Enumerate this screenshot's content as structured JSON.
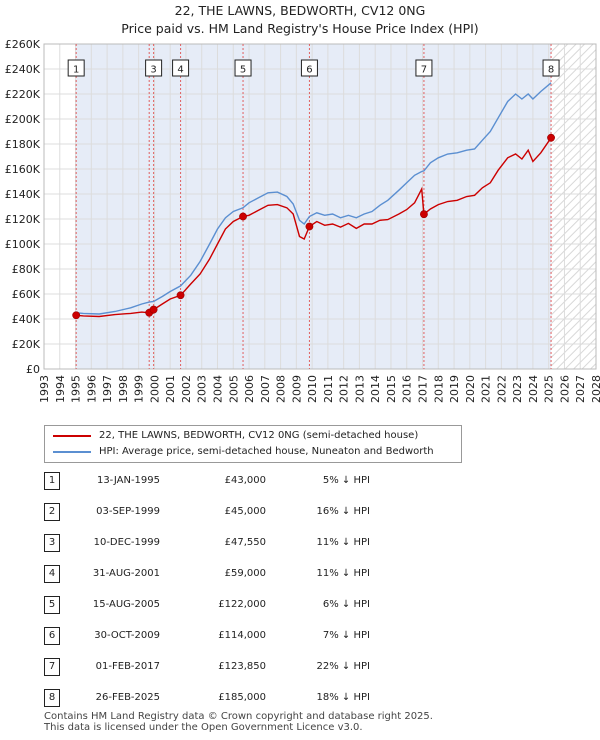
{
  "title_line1": "22, THE LAWNS, BEDWORTH, CV12 0NG",
  "title_line2": "Price paid vs. HM Land Registry's House Price Index (HPI)",
  "colors": {
    "price": "#cc0000",
    "hpi": "#5b8fd1",
    "band": "#e6ecf7",
    "grid": "#dcdcdc"
  },
  "legend": {
    "price_label": "22, THE LAWNS, BEDWORTH, CV12 0NG (semi-detached house)",
    "hpi_label": "HPI: Average price, semi-detached house, Nuneaton and Bedworth"
  },
  "chart_data": {
    "type": "line",
    "xlim": [
      1993,
      2028
    ],
    "ylim": [
      0,
      260000
    ],
    "y_ticks": [
      "£0",
      "£20K",
      "£40K",
      "£60K",
      "£80K",
      "£100K",
      "£120K",
      "£140K",
      "£160K",
      "£180K",
      "£200K",
      "£220K",
      "£240K",
      "£260K"
    ],
    "x_ticks": [
      "1993",
      "1994",
      "1995",
      "1996",
      "1997",
      "1998",
      "1999",
      "2000",
      "2001",
      "2002",
      "2003",
      "2004",
      "2005",
      "2006",
      "2007",
      "2008",
      "2009",
      "2010",
      "2011",
      "2012",
      "2013",
      "2014",
      "2015",
      "2016",
      "2017",
      "2018",
      "2019",
      "2020",
      "2021",
      "2022",
      "2023",
      "2024",
      "2025",
      "2026",
      "2027",
      "2028"
    ],
    "shaded_range": [
      1995.04,
      2025.15
    ],
    "grid": true,
    "series": [
      {
        "name": "22, THE LAWNS, BEDWORTH, CV12 0NG (semi-detached house)",
        "points": [
          [
            1995.04,
            43000
          ],
          [
            1995.5,
            42500
          ],
          [
            1996.5,
            42000
          ],
          [
            1997.5,
            43500
          ],
          [
            1998.5,
            44500
          ],
          [
            1999.2,
            45500
          ],
          [
            1999.67,
            45000
          ],
          [
            1999.95,
            47550
          ],
          [
            2000.5,
            52000
          ],
          [
            2001.0,
            56000
          ],
          [
            2001.66,
            59000
          ],
          [
            2002.3,
            68000
          ],
          [
            2002.9,
            76000
          ],
          [
            2003.5,
            88000
          ],
          [
            2004.0,
            100000
          ],
          [
            2004.5,
            112000
          ],
          [
            2005.0,
            118000
          ],
          [
            2005.62,
            122000
          ],
          [
            2006.0,
            123000
          ],
          [
            2006.6,
            127000
          ],
          [
            2007.2,
            131000
          ],
          [
            2007.8,
            131500
          ],
          [
            2008.4,
            129000
          ],
          [
            2008.8,
            124000
          ],
          [
            2009.2,
            106000
          ],
          [
            2009.5,
            104000
          ],
          [
            2009.83,
            114000
          ],
          [
            2010.3,
            118000
          ],
          [
            2010.8,
            115000
          ],
          [
            2011.3,
            116000
          ],
          [
            2011.8,
            113500
          ],
          [
            2012.3,
            116500
          ],
          [
            2012.8,
            112500
          ],
          [
            2013.3,
            116000
          ],
          [
            2013.8,
            116000
          ],
          [
            2014.3,
            119000
          ],
          [
            2014.8,
            119500
          ],
          [
            2015.5,
            124000
          ],
          [
            2016.0,
            127500
          ],
          [
            2016.5,
            133000
          ],
          [
            2016.95,
            144000
          ],
          [
            2017.09,
            123850
          ],
          [
            2017.5,
            128000
          ],
          [
            2018.0,
            131500
          ],
          [
            2018.6,
            134000
          ],
          [
            2019.2,
            135000
          ],
          [
            2019.8,
            138000
          ],
          [
            2020.3,
            139000
          ],
          [
            2020.8,
            145000
          ],
          [
            2021.3,
            149000
          ],
          [
            2021.8,
            159000
          ],
          [
            2022.4,
            169000
          ],
          [
            2022.9,
            172000
          ],
          [
            2023.3,
            168000
          ],
          [
            2023.7,
            175000
          ],
          [
            2024.0,
            166000
          ],
          [
            2024.5,
            173000
          ],
          [
            2025.15,
            185000
          ]
        ]
      },
      {
        "name": "HPI: Average price, semi-detached house, Nuneaton and Bedworth",
        "points": [
          [
            1995.04,
            45000
          ],
          [
            1995.5,
            44500
          ],
          [
            1996.5,
            44000
          ],
          [
            1997.5,
            46000
          ],
          [
            1998.5,
            49000
          ],
          [
            1999.2,
            52000
          ],
          [
            1999.67,
            53500
          ],
          [
            1999.95,
            54000
          ],
          [
            2000.5,
            58000
          ],
          [
            2001.0,
            62000
          ],
          [
            2001.66,
            66500
          ],
          [
            2002.3,
            75000
          ],
          [
            2002.9,
            86000
          ],
          [
            2003.5,
            100000
          ],
          [
            2004.0,
            112000
          ],
          [
            2004.5,
            121000
          ],
          [
            2005.0,
            126000
          ],
          [
            2005.62,
            129000
          ],
          [
            2006.0,
            133000
          ],
          [
            2006.6,
            137000
          ],
          [
            2007.2,
            141000
          ],
          [
            2007.8,
            141500
          ],
          [
            2008.4,
            138000
          ],
          [
            2008.8,
            132000
          ],
          [
            2009.2,
            119000
          ],
          [
            2009.5,
            116000
          ],
          [
            2009.83,
            122000
          ],
          [
            2010.3,
            125000
          ],
          [
            2010.8,
            123000
          ],
          [
            2011.3,
            124000
          ],
          [
            2011.8,
            121000
          ],
          [
            2012.3,
            123000
          ],
          [
            2012.8,
            121000
          ],
          [
            2013.3,
            124000
          ],
          [
            2013.8,
            126000
          ],
          [
            2014.3,
            131000
          ],
          [
            2014.8,
            135000
          ],
          [
            2015.5,
            143000
          ],
          [
            2016.0,
            149000
          ],
          [
            2016.5,
            155000
          ],
          [
            2016.95,
            158000
          ],
          [
            2017.09,
            158500
          ],
          [
            2017.5,
            165000
          ],
          [
            2018.0,
            169000
          ],
          [
            2018.6,
            172000
          ],
          [
            2019.2,
            173000
          ],
          [
            2019.8,
            175000
          ],
          [
            2020.3,
            176000
          ],
          [
            2020.8,
            183000
          ],
          [
            2021.3,
            190000
          ],
          [
            2021.8,
            201000
          ],
          [
            2022.4,
            214000
          ],
          [
            2022.9,
            220000
          ],
          [
            2023.3,
            216000
          ],
          [
            2023.7,
            220000
          ],
          [
            2024.0,
            216000
          ],
          [
            2024.5,
            222000
          ],
          [
            2025.15,
            229000
          ]
        ]
      }
    ],
    "sales": [
      {
        "label": "1",
        "x": 1995.04,
        "y": 43000,
        "date": "13-JAN-1995",
        "price": "£43,000",
        "hpi": "5% ↓ HPI"
      },
      {
        "label": "2",
        "x": 1999.67,
        "y": 45000,
        "date": "03-SEP-1999",
        "price": "£45,000",
        "hpi": "16% ↓ HPI"
      },
      {
        "label": "3",
        "x": 1999.95,
        "y": 47550,
        "date": "10-DEC-1999",
        "price": "£47,550",
        "hpi": "11% ↓ HPI"
      },
      {
        "label": "4",
        "x": 2001.66,
        "y": 59000,
        "date": "31-AUG-2001",
        "price": "£59,000",
        "hpi": "11% ↓ HPI"
      },
      {
        "label": "5",
        "x": 2005.62,
        "y": 122000,
        "date": "15-AUG-2005",
        "price": "£122,000",
        "hpi": "6% ↓ HPI"
      },
      {
        "label": "6",
        "x": 2009.83,
        "y": 114000,
        "date": "30-OCT-2009",
        "price": "£114,000",
        "hpi": "7% ↓ HPI"
      },
      {
        "label": "7",
        "x": 2017.09,
        "y": 123850,
        "date": "01-FEB-2017",
        "price": "£123,850",
        "hpi": "22% ↓ HPI"
      },
      {
        "label": "8",
        "x": 2025.15,
        "y": 185000,
        "date": "26-FEB-2025",
        "price": "£185,000",
        "hpi": "18% ↓ HPI"
      }
    ],
    "chart_markers": [
      "1",
      "3",
      "4",
      "5",
      "6",
      "7",
      "8"
    ]
  },
  "footer_line1": "Contains HM Land Registry data © Crown copyright and database right 2025.",
  "footer_line2": "This data is licensed under the Open Government Licence v3.0."
}
